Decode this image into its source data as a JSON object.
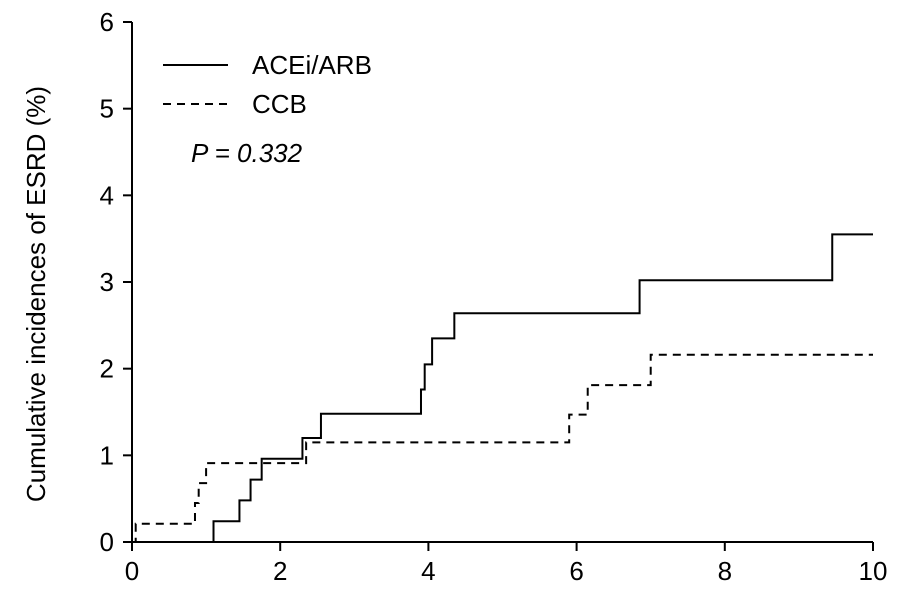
{
  "chart_data": {
    "type": "line",
    "title": "",
    "xlabel": "",
    "ylabel": "Cumulative incidences of ESRD (%)",
    "xlim": [
      0,
      10
    ],
    "ylim": [
      0,
      6
    ],
    "xticks": [
      "0",
      "2",
      "4",
      "6",
      "8",
      "10"
    ],
    "yticks": [
      "0",
      "1",
      "2",
      "3",
      "4",
      "5",
      "6"
    ],
    "grid": false,
    "legend_position": "top-left",
    "annotation": {
      "prefix": "P",
      "equals": " = ",
      "value": "0.332"
    },
    "series": [
      {
        "name": "ACEi/ARB",
        "style": "solid",
        "color": "#000000",
        "step": true,
        "x": [
          0,
          1.1,
          1.45,
          1.6,
          1.75,
          2.3,
          2.55,
          3.9,
          3.95,
          4.0,
          4.05,
          4.35,
          6.85,
          9.45,
          10.0
        ],
        "y": [
          0,
          0.24,
          0.48,
          0.72,
          0.96,
          1.2,
          1.48,
          1.76,
          2.05,
          2.05,
          2.35,
          2.64,
          3.02,
          3.55,
          3.55
        ]
      },
      {
        "name": "CCB",
        "style": "dashed",
        "color": "#000000",
        "step": true,
        "x": [
          0,
          0.05,
          0.85,
          0.9,
          1.0,
          2.3,
          2.35,
          5.85,
          5.9,
          6.15,
          7.0,
          10.0
        ],
        "y": [
          0,
          0.21,
          0.45,
          0.68,
          0.91,
          0.91,
          1.15,
          1.15,
          1.47,
          1.81,
          2.16,
          2.16
        ]
      }
    ]
  }
}
